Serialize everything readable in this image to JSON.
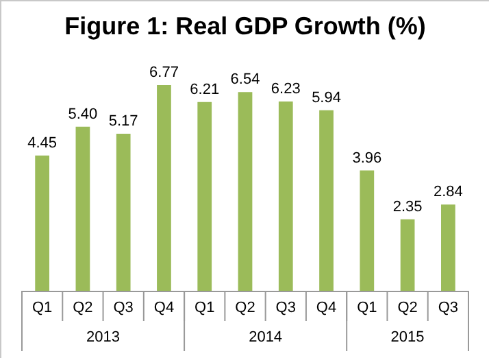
{
  "chart_data": {
    "type": "bar",
    "title": "Figure 1: Real GDP Growth (%)",
    "categories": [
      "Q1",
      "Q2",
      "Q3",
      "Q4",
      "Q1",
      "Q2",
      "Q3",
      "Q4",
      "Q1",
      "Q2",
      "Q3"
    ],
    "values": [
      4.45,
      5.4,
      5.17,
      6.77,
      6.21,
      6.54,
      6.23,
      5.94,
      3.96,
      2.35,
      2.84
    ],
    "value_labels": [
      "4.45",
      "5.40",
      "5.17",
      "6.77",
      "6.21",
      "6.54",
      "6.23",
      "5.94",
      "3.96",
      "2.35",
      "2.84"
    ],
    "color": "#9bbb59",
    "annotations": [
      "2013",
      "2014",
      "2015"
    ]
  }
}
